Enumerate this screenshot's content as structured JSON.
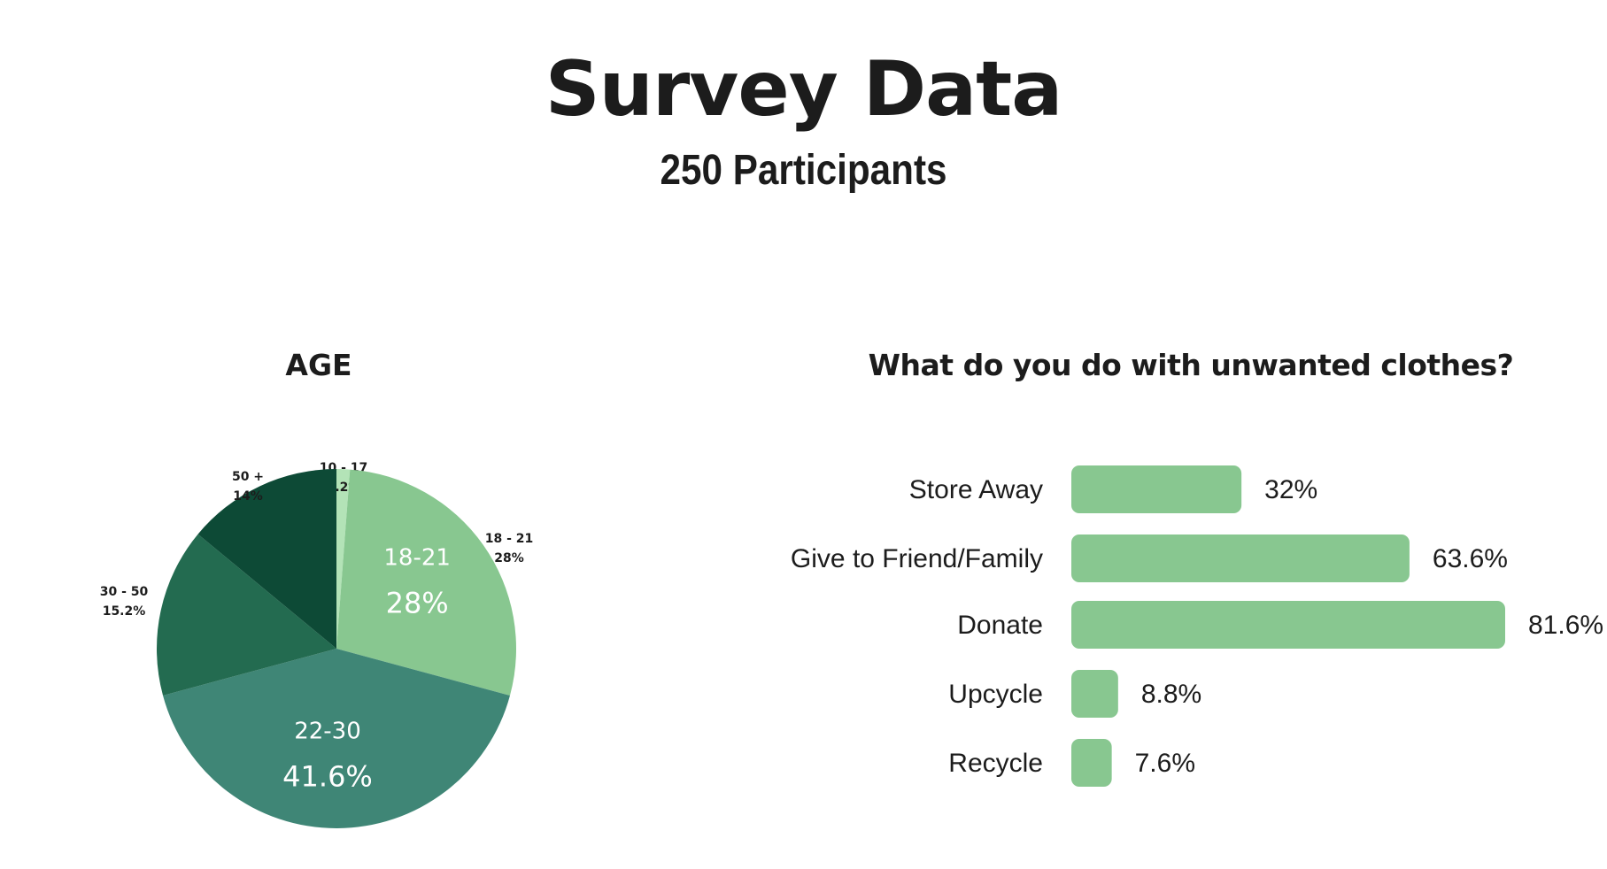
{
  "header": {
    "title": "Survey Data",
    "subtitle": "250 Participants"
  },
  "chart_data": [
    {
      "type": "pie",
      "title": "AGE",
      "slices": [
        {
          "category": "10 - 17",
          "value": 1.2,
          "label": "1.2%",
          "color": "#b3e3b7"
        },
        {
          "category": "18 - 21",
          "value": 28,
          "label": "28%",
          "color": "#88c790",
          "inner_category": "18-21",
          "inner_label": "28%"
        },
        {
          "category": "22-30",
          "value": 41.6,
          "label": "41.6%",
          "color": "#3f8676",
          "inner_category": "22-30",
          "inner_label": "41.6%"
        },
        {
          "category": "30 - 50",
          "value": 15.2,
          "label": "15.2%",
          "color": "#236b50"
        },
        {
          "category": "50 +",
          "value": 14,
          "label": "14%",
          "color": "#0d4a36"
        }
      ]
    },
    {
      "type": "bar",
      "orientation": "horizontal",
      "title": "What do you do with unwanted clothes?",
      "categories": [
        "Store Away",
        "Give to Friend/Family",
        "Donate",
        "Upcycle",
        "Recycle"
      ],
      "values": [
        32,
        63.6,
        81.6,
        8.8,
        7.6
      ],
      "value_labels": [
        "32%",
        "63.6%",
        "81.6%",
        "8.8%",
        "7.6%"
      ],
      "bar_color": "#88c790"
    }
  ]
}
